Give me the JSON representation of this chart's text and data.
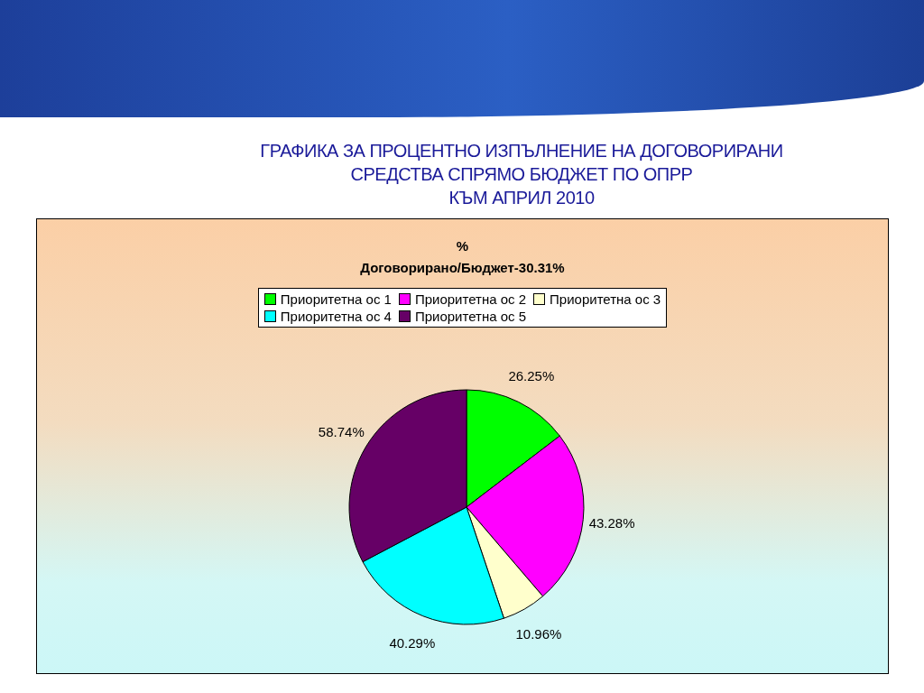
{
  "chart_data": {
    "type": "pie",
    "title": "ГРАФИКА ЗА ПРОЦЕНТНО ИЗПЪЛНЕНИЕ НА ДОГОВОРИРАНИ\nСРЕДСТВА СПРЯМО БЮДЖЕТ ПО ОПРР\nКЪМ АПРИЛ 2010",
    "subtitle": "%\nДоговорирано/Бюджет-30.31%",
    "categories": [
      "Приоритетна ос 1",
      "Приоритетна ос 2",
      "Приоритетна ос 3",
      "Приоритетна ос 4",
      "Приоритетна ос 5"
    ],
    "values": [
      26.25,
      43.28,
      10.96,
      40.29,
      58.74
    ],
    "colors": [
      "#00ff00",
      "#ff00ff",
      "#ffffcc",
      "#00ffff",
      "#660066"
    ],
    "value_labels": [
      "26.25%",
      "43.28%",
      "10.96%",
      "40.29%",
      "58.74%"
    ],
    "legend": "top"
  }
}
